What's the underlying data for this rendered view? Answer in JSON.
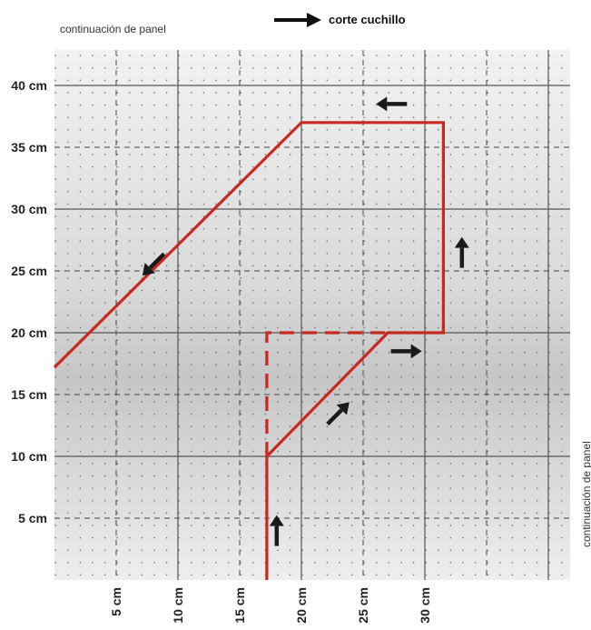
{
  "labels": {
    "top_continuation": "continuación de panel",
    "side_continuation": "continuación de panel",
    "legend": "corte cuchillo"
  },
  "axes": {
    "unit": "cm",
    "y_ticks": [
      {
        "value": 5,
        "label": "5 cm"
      },
      {
        "value": 10,
        "label": "10 cm"
      },
      {
        "value": 15,
        "label": "15 cm"
      },
      {
        "value": 20,
        "label": "20 cm"
      },
      {
        "value": 25,
        "label": "25 cm"
      },
      {
        "value": 30,
        "label": "30 cm"
      },
      {
        "value": 35,
        "label": "35 cm"
      },
      {
        "value": 40,
        "label": "40 cm"
      }
    ],
    "x_ticks": [
      {
        "value": 5,
        "label": "5 cm"
      },
      {
        "value": 10,
        "label": "10 cm"
      },
      {
        "value": 15,
        "label": "15 cm"
      },
      {
        "value": 20,
        "label": "20 cm"
      },
      {
        "value": 25,
        "label": "25 cm"
      },
      {
        "value": 30,
        "label": "30 cm"
      }
    ],
    "x_range": [
      0,
      40.5
    ],
    "y_range": [
      0,
      43.5
    ]
  },
  "colors": {
    "cut_line": "#c8281e",
    "arrow": "#1a1a1a",
    "grid_solid": "#555555",
    "grid_dashed": "#444444",
    "panel_light": "#ececec",
    "panel_dark": "#c9c9c9"
  },
  "cut_path": {
    "solid": [
      [
        17.2,
        0
      ],
      [
        17.2,
        10
      ],
      [
        27,
        20
      ],
      [
        31.5,
        20
      ],
      [
        31.5,
        37
      ],
      [
        20,
        37
      ],
      [
        0,
        17.2
      ]
    ],
    "dashed": [
      [
        17.2,
        10
      ],
      [
        17.2,
        20
      ],
      [
        27,
        20
      ]
    ]
  },
  "direction_arrows": [
    {
      "at": [
        18.0,
        4
      ],
      "direction": "up"
    },
    {
      "at": [
        23.0,
        13.5
      ],
      "direction": "up-right"
    },
    {
      "at": [
        28.5,
        18.5
      ],
      "direction": "right"
    },
    {
      "at": [
        33.0,
        26.5
      ],
      "direction": "up"
    },
    {
      "at": [
        27.3,
        38.5
      ],
      "direction": "left"
    },
    {
      "at": [
        8.0,
        25.5
      ],
      "direction": "down-left"
    }
  ]
}
